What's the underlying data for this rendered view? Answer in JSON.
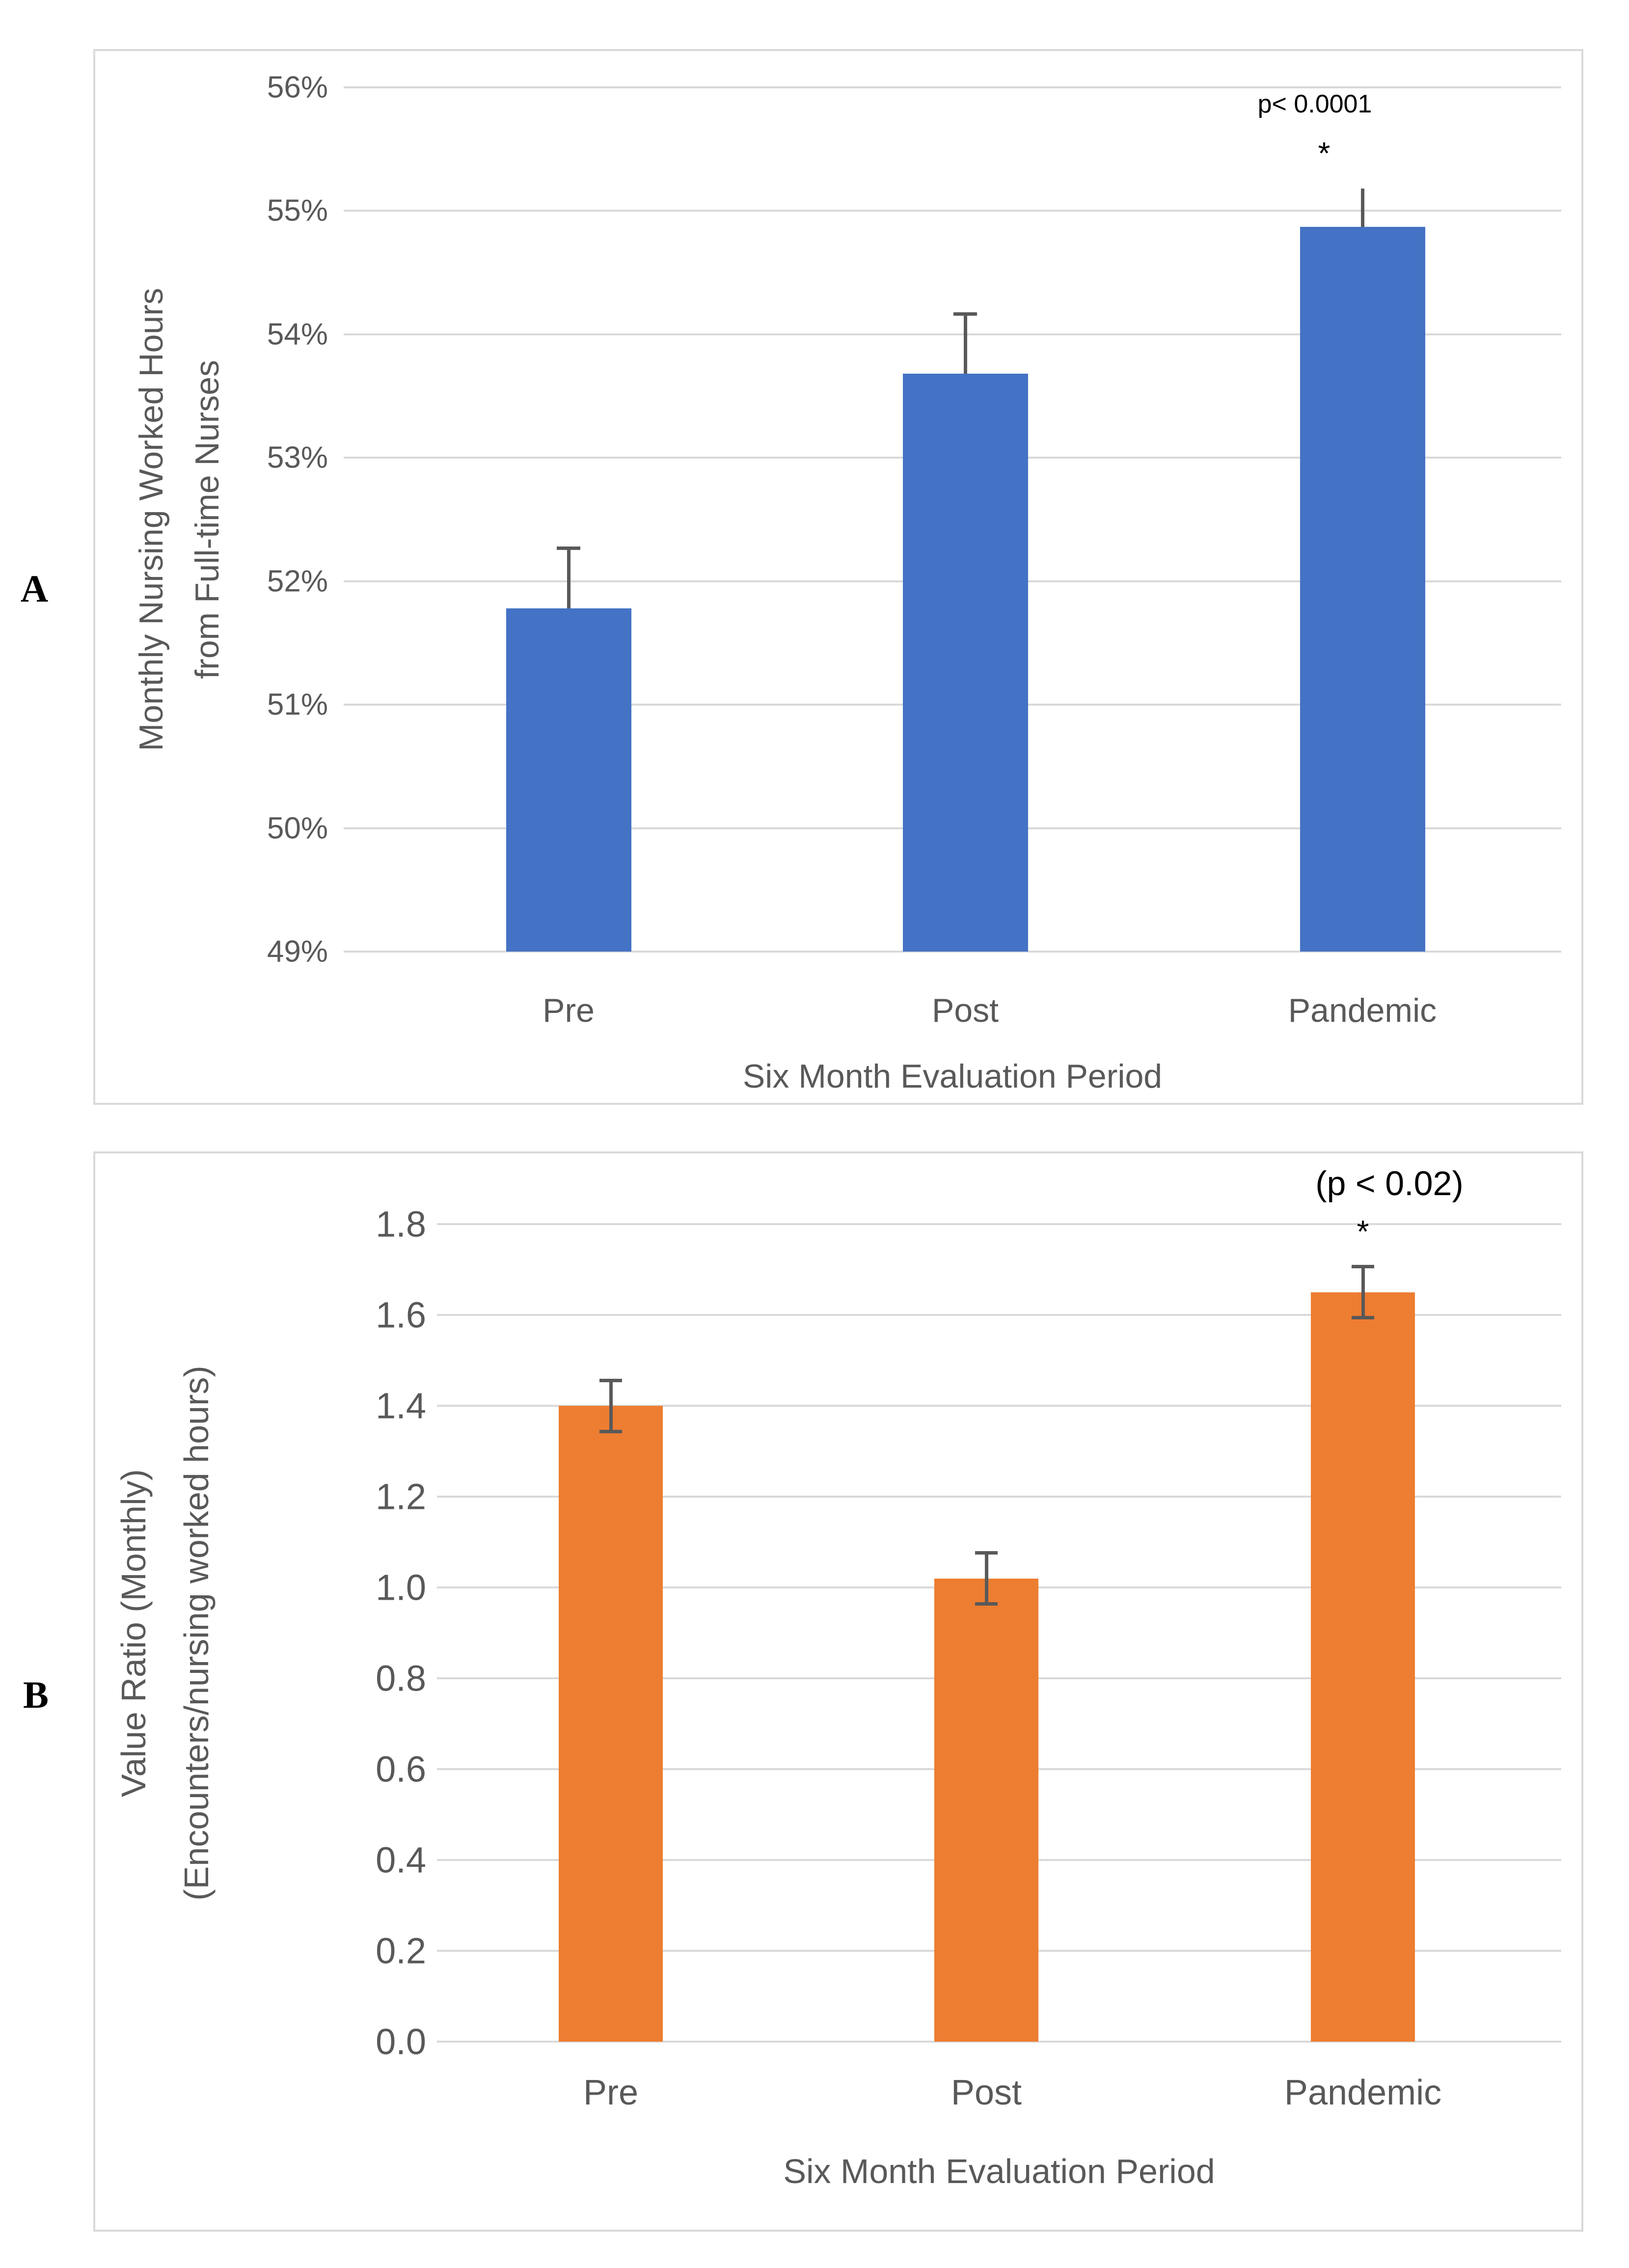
{
  "page": {
    "background": "#ffffff",
    "text_color": "#595959"
  },
  "panel_labels": [
    "A",
    "B"
  ],
  "chart_data": [
    {
      "panel": "A",
      "panel_label": "A",
      "type": "bar",
      "categories": [
        "Pre",
        "Post",
        "Pandemic"
      ],
      "values": [
        51.78,
        53.68,
        54.87
      ],
      "errors_up": [
        0.5,
        0.5,
        0.31
      ],
      "errors_down": [
        0,
        0,
        0
      ],
      "error_caps": [
        true,
        true,
        false
      ],
      "bar_color": "#4472C4",
      "error_color": "#595959",
      "grid": true,
      "legend": "none",
      "xlabel": "Six Month Evaluation Period",
      "ylabel_lines": [
        "Monthly Nursing Worked Hours",
        "from Full-time Nurses"
      ],
      "ylim": [
        49,
        56
      ],
      "ytick_step": 1,
      "ytick_labels": [
        "56%",
        "55%",
        "54%",
        "53%",
        "52%",
        "51%",
        "50%",
        "49%"
      ],
      "annotation": "p< 0.0001",
      "annotation_marker": "*",
      "annotation_over_category": "Pandemic"
    },
    {
      "panel": "B",
      "panel_label": "B",
      "type": "bar",
      "categories": [
        "Pre",
        "Post",
        "Pandemic"
      ],
      "values": [
        1.4,
        1.02,
        1.65
      ],
      "errors_up": [
        0.06,
        0.06,
        0.06
      ],
      "errors_down": [
        0.06,
        0.06,
        0.06
      ],
      "error_caps": [
        true,
        true,
        true
      ],
      "bar_color": "#ED7D31",
      "error_color": "#595959",
      "grid": true,
      "legend": "none",
      "xlabel": "Six Month Evaluation Period",
      "ylabel_lines": [
        "Value Ratio (Monthly)",
        "(Encounters/nursing worked hours)"
      ],
      "ylim": [
        0,
        1.8
      ],
      "ytick_step": 0.2,
      "ytick_labels": [
        "1.8",
        "1.6",
        "1.4",
        "1.2",
        "1.0",
        "0.8",
        "0.6",
        "0.4",
        "0.2",
        "0.0"
      ],
      "annotation": "(p < 0.02)",
      "annotation_marker": "*",
      "annotation_over_category": "Pandemic"
    }
  ]
}
